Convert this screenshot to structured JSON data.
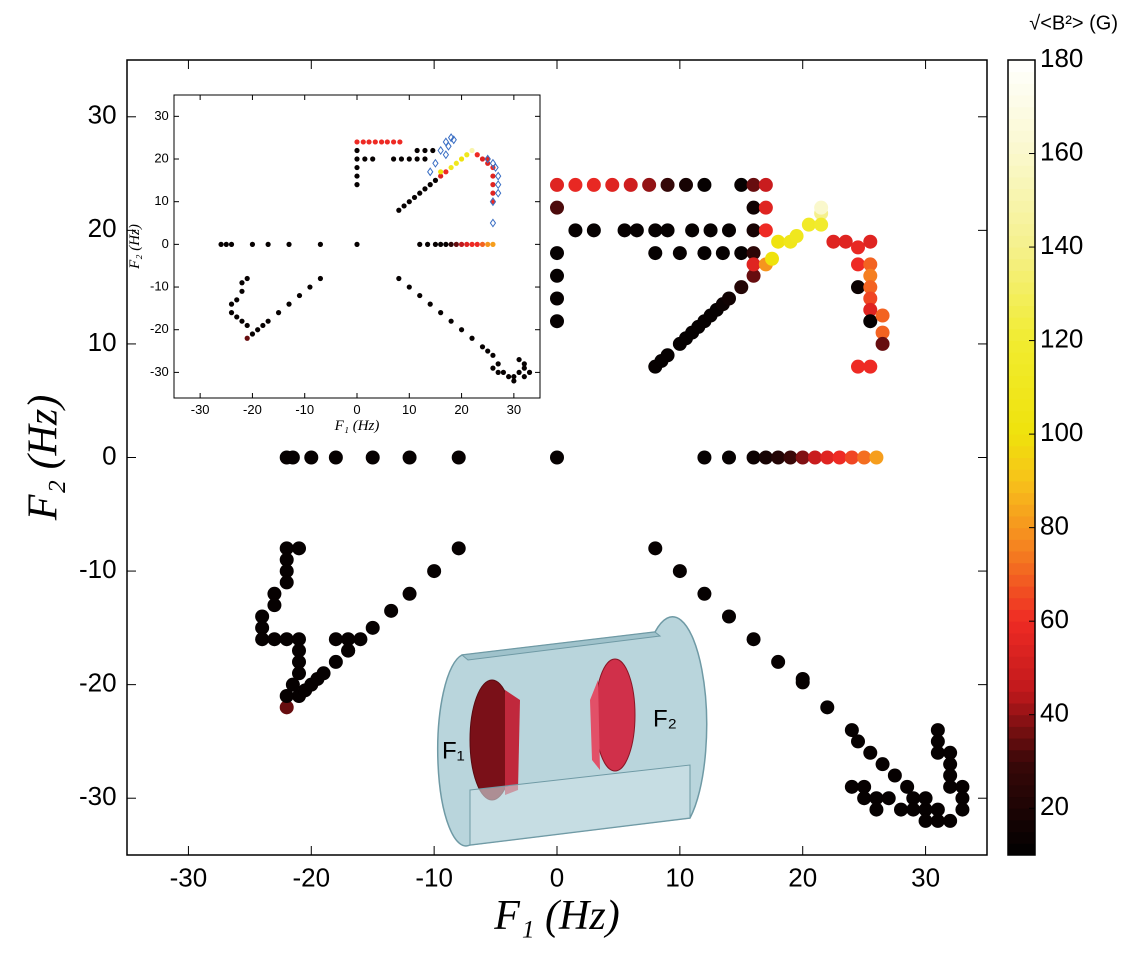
{
  "chart_data": [
    {
      "type": "scatter",
      "xlabel": "F₁ (Hz)",
      "ylabel": "F₂ (Hz)",
      "xlim": [
        -35,
        35
      ],
      "ylim": [
        -35,
        35
      ],
      "xticks": [
        -30,
        -20,
        -10,
        0,
        10,
        20,
        30
      ],
      "yticks": [
        -30,
        -20,
        -10,
        0,
        10,
        20,
        30
      ],
      "annotations": [
        "F₁",
        "F₂"
      ],
      "colorbar": {
        "label": "√<B²> (G)",
        "clim": [
          10,
          180
        ],
        "ticks": [
          20,
          40,
          60,
          80,
          100,
          120,
          140,
          160,
          180
        ],
        "colormap": [
          [
            10,
            "#000000"
          ],
          [
            30,
            "#3a0808"
          ],
          [
            45,
            "#c0181c"
          ],
          [
            60,
            "#ee2a24"
          ],
          [
            75,
            "#f57f20"
          ],
          [
            90,
            "#f7c21a"
          ],
          [
            100,
            "#efe20c"
          ],
          [
            120,
            "#f1ec30"
          ],
          [
            140,
            "#f5f08c"
          ],
          [
            160,
            "#faf8cc"
          ],
          [
            180,
            "#ffffff"
          ]
        ]
      },
      "x": [
        -22,
        -21.5,
        -20,
        -18,
        -15,
        -12,
        -8,
        0,
        12,
        14,
        16,
        17,
        18,
        19,
        20,
        21,
        22,
        23,
        24,
        25,
        26,
        0,
        1.5,
        3,
        4.5,
        6,
        7.5,
        9,
        10.5,
        12,
        15,
        16,
        17,
        0,
        0,
        0,
        0,
        0,
        1.5,
        3,
        5.5,
        6.5,
        8,
        9,
        11,
        12.5,
        14,
        8,
        10,
        12,
        13.5,
        15,
        16,
        16,
        16,
        17,
        17,
        8,
        8.5,
        9,
        10,
        10.5,
        11,
        11.5,
        12,
        12.5,
        13,
        13.5,
        14,
        15,
        16,
        16,
        17,
        17.5,
        18,
        19,
        19.5,
        20.5,
        21.5,
        21.5,
        21.5,
        22.5,
        23.5,
        24.5,
        24.5,
        25.5,
        25.5,
        25.5,
        24.5,
        25.5,
        25.5,
        25.5,
        25.5,
        26.5,
        26.5,
        25.5,
        24.5,
        26.5,
        -22,
        -21,
        -20.5,
        -20,
        -19.5,
        -19,
        -18,
        -17,
        -16,
        -15,
        -13.5,
        -12,
        -10,
        -8,
        -22,
        -21,
        -22,
        -22,
        -22,
        -23,
        -23,
        -24,
        -24,
        -24,
        -23,
        -22,
        -21,
        -21,
        -21,
        -21,
        -21.5,
        -22,
        -18,
        -17,
        -17,
        8,
        10,
        12,
        14,
        16,
        18,
        20,
        20,
        22,
        24,
        24.5,
        25.5,
        26.5,
        27.5,
        28.5,
        29,
        24,
        25,
        25,
        26,
        26,
        27,
        28,
        29,
        30,
        30,
        31,
        31,
        32,
        31,
        31,
        31,
        32,
        32,
        32,
        32,
        33,
        33,
        33,
        30
      ],
      "y": [
        0,
        0,
        0,
        0,
        0,
        0,
        0,
        0,
        0,
        0,
        0,
        0,
        0,
        0,
        0,
        0,
        0,
        0,
        0,
        0,
        0,
        24,
        24,
        24,
        24,
        24,
        24,
        24,
        24,
        24,
        24,
        24,
        24,
        22,
        18,
        16,
        14,
        12,
        20,
        20,
        20,
        20,
        20,
        20,
        20,
        20,
        20,
        18,
        18,
        18,
        18,
        18,
        22,
        20,
        18,
        22,
        20,
        8,
        8.5,
        9,
        10,
        10.5,
        11,
        11.5,
        12,
        12.5,
        13,
        13.5,
        14,
        15,
        16,
        17,
        17,
        17.5,
        19,
        19,
        19.5,
        20.5,
        21.5,
        22,
        20.5,
        19,
        19,
        18.5,
        17,
        19,
        17,
        16,
        15,
        15,
        14,
        13,
        12,
        11,
        10,
        8,
        8,
        12.5,
        -22,
        -21,
        -20.5,
        -20,
        -19.5,
        -19,
        -18,
        -17,
        -16,
        -15,
        -13.5,
        -12,
        -10,
        -8,
        -8,
        -8,
        -9,
        -10,
        -11,
        -12,
        -13,
        -14,
        -15,
        -16,
        -16,
        -16,
        -16,
        -17,
        -18,
        -19,
        -20,
        -21,
        -16,
        -16,
        -17,
        -8,
        -10,
        -12,
        -14,
        -16,
        -18,
        -19.5,
        -19.8,
        -22,
        -24,
        -25,
        -26,
        -27,
        -28,
        -29,
        -30,
        -29,
        -29,
        -30,
        -30,
        -31,
        -30,
        -31,
        -31,
        -31,
        -30,
        -31,
        -32,
        -32,
        -24,
        -25,
        -26,
        -26,
        -27,
        -28,
        -29,
        -29,
        -30,
        -31,
        -32
      ],
      "c": [
        12,
        12,
        12,
        12,
        12,
        12,
        12,
        12,
        12,
        12,
        14,
        18,
        22,
        30,
        38,
        48,
        55,
        60,
        65,
        72,
        82,
        55,
        58,
        58,
        55,
        50,
        40,
        28,
        18,
        12,
        12,
        35,
        48,
        32,
        12,
        12,
        12,
        12,
        12,
        12,
        12,
        12,
        12,
        12,
        12,
        12,
        12,
        12,
        12,
        12,
        12,
        12,
        15,
        18,
        25,
        55,
        60,
        12,
        12,
        12,
        12,
        12,
        12,
        12,
        12,
        12,
        12,
        14,
        16,
        22,
        35,
        55,
        80,
        100,
        102,
        108,
        110,
        115,
        140,
        160,
        118,
        55,
        55,
        58,
        60,
        55,
        70,
        75,
        14,
        70,
        65,
        55,
        12,
        70,
        35,
        60,
        60,
        70,
        35,
        12,
        12,
        12,
        12,
        12,
        12,
        12,
        12,
        12,
        12,
        12,
        12,
        12,
        12,
        12,
        12,
        12,
        12,
        12,
        12,
        12,
        12,
        12,
        12,
        12,
        12,
        12,
        12,
        12,
        12,
        12,
        12,
        12,
        12,
        12,
        12,
        12,
        12,
        12,
        12,
        12,
        12,
        12,
        12,
        12,
        12,
        12,
        12,
        12,
        12,
        12,
        12,
        12,
        12,
        12,
        12,
        12,
        12,
        12,
        12,
        12,
        12,
        12,
        12,
        12,
        12,
        12,
        12,
        12,
        12,
        12,
        12,
        12,
        12
      ]
    },
    {
      "type": "scatter",
      "xlabel": "F₁ (Hz)",
      "ylabel": "F₂ (Hz)",
      "xlim": [
        -35,
        35
      ],
      "ylim": [
        -36,
        35
      ],
      "xticks": [
        -30,
        -20,
        -10,
        0,
        10,
        20,
        30
      ],
      "yticks": [
        -30,
        -20,
        -10,
        0,
        10,
        20,
        30
      ],
      "x": [
        -26,
        -25,
        -24,
        -20,
        -17,
        -13,
        -7,
        0,
        12,
        13.5,
        15,
        16,
        17,
        18,
        19,
        20,
        21,
        22,
        23,
        24,
        25,
        26,
        0,
        1.2,
        2.3,
        3.5,
        4.7,
        5.8,
        7,
        8.2,
        11.5,
        13,
        14.5,
        1.5,
        3,
        7,
        8.5,
        10,
        11.5,
        13,
        0,
        0,
        0,
        0,
        0,
        8,
        9,
        10,
        11,
        12,
        13,
        14,
        15,
        16,
        17,
        16,
        18,
        19,
        20,
        21,
        22,
        23,
        24,
        25,
        25,
        26,
        26,
        26,
        26,
        26,
        -21,
        -20,
        -19,
        -18,
        -17,
        -15,
        -13,
        -11,
        -9,
        -7,
        -21,
        -22,
        -22,
        -23,
        -24,
        -24,
        -23,
        -22,
        -21,
        8,
        10,
        12,
        14,
        16,
        18,
        20,
        22,
        24,
        25,
        26,
        27,
        28,
        30,
        31,
        32,
        26,
        27,
        29,
        31,
        32,
        32,
        33,
        30
      ],
      "y": [
        0,
        0,
        0,
        0,
        0,
        0,
        0,
        0,
        0,
        0,
        0,
        0,
        0,
        0,
        0,
        0,
        0,
        0,
        0,
        0,
        0,
        0,
        24,
        24,
        24,
        24,
        24,
        24,
        24,
        24,
        22,
        22,
        22,
        20,
        20,
        20,
        20,
        20,
        20,
        20,
        22,
        20,
        18,
        16,
        14,
        8,
        9,
        10,
        11,
        12,
        13,
        14,
        15,
        16,
        17,
        17,
        18,
        19,
        20,
        21,
        22,
        21,
        20,
        20,
        19,
        18,
        16,
        14,
        12,
        10,
        -22,
        -21,
        -20,
        -19,
        -18,
        -16,
        -14,
        -12,
        -10,
        -8,
        -8,
        -9,
        -11,
        -13,
        -14,
        -16,
        -17,
        -18,
        -19,
        -8,
        -10,
        -12,
        -14,
        -16,
        -18,
        -20,
        -22,
        -24,
        -25,
        -26,
        -28,
        -30,
        -31,
        -30,
        -31,
        -29,
        -30,
        -31,
        -27,
        -28,
        -29,
        -30,
        -32
      ],
      "c": [
        12,
        12,
        12,
        12,
        12,
        12,
        12,
        12,
        12,
        12,
        12,
        12,
        12,
        25,
        35,
        45,
        55,
        60,
        60,
        70,
        80,
        82,
        60,
        60,
        60,
        60,
        60,
        60,
        60,
        60,
        12,
        12,
        12,
        12,
        12,
        12,
        12,
        12,
        12,
        12,
        12,
        12,
        12,
        12,
        12,
        12,
        12,
        12,
        12,
        12,
        12,
        12,
        12,
        55,
        60,
        100,
        110,
        110,
        100,
        110,
        150,
        60,
        55,
        55,
        55,
        60,
        55,
        55,
        55,
        60,
        35,
        12,
        12,
        12,
        12,
        12,
        12,
        12,
        12,
        12,
        12,
        12,
        12,
        12,
        12,
        12,
        12,
        12,
        12,
        12,
        12,
        12,
        12,
        12,
        12,
        12,
        12,
        12,
        12,
        12,
        12,
        12,
        12,
        12,
        12,
        12,
        12,
        12,
        12,
        12,
        12,
        12,
        12
      ],
      "overlay": {
        "marker": "diamond",
        "color": "#3b6fc4",
        "x": [
          17,
          18,
          17.5,
          18.5,
          16,
          17,
          15,
          14,
          25,
          26,
          26.5,
          27,
          27,
          27,
          26,
          26
        ],
        "y": [
          24,
          25,
          23,
          24.5,
          22,
          21,
          19,
          17,
          20,
          19,
          18,
          16,
          14,
          12,
          10,
          5
        ]
      }
    }
  ]
}
